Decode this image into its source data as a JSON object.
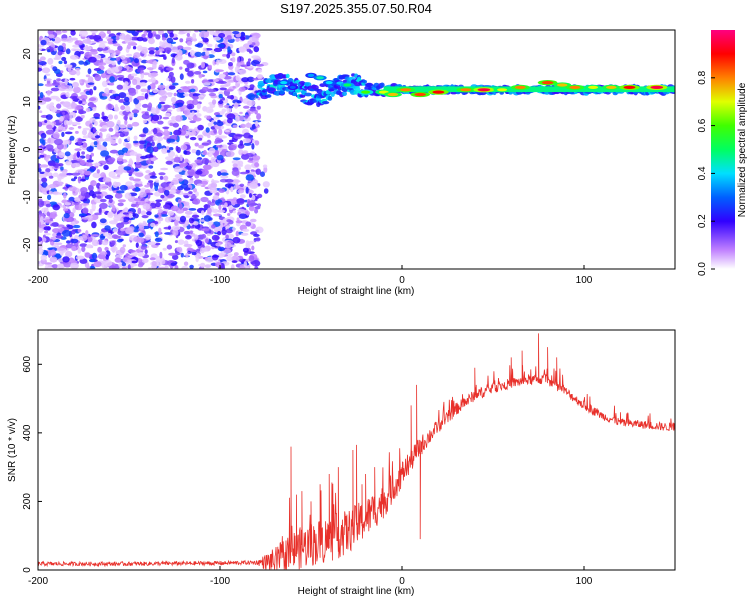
{
  "title": "S197.2025.355.07.50.R04",
  "colors": {
    "signal": "#e8302a",
    "frame": "#000000"
  },
  "chart_data": [
    {
      "type": "heatmap",
      "xlabel": "Height of straight line (km)",
      "ylabel": "Frequency (Hz)",
      "xlim": [
        -200,
        150
      ],
      "ylim": [
        -25,
        25
      ],
      "xticks": [
        -200,
        -100,
        0,
        100
      ],
      "yticks": [
        -20,
        -10,
        0,
        10,
        20
      ],
      "noise_region": [
        -200,
        -78
      ],
      "signal_track": {
        "x_start": -78,
        "x_end": 150,
        "frequency": 12.5,
        "blobs": [
          {
            "x": -72,
            "f": 12.5,
            "v": 0.25
          },
          {
            "x": -65,
            "f": 14.0,
            "v": 0.4
          },
          {
            "x": -60,
            "f": 13.0,
            "v": 0.3
          },
          {
            "x": -50,
            "f": 15.5,
            "v": 0.35
          },
          {
            "x": -45,
            "f": 15.0,
            "v": 0.45
          },
          {
            "x": -40,
            "f": 14.0,
            "v": 0.4
          },
          {
            "x": -30,
            "f": 13.5,
            "v": 0.5
          },
          {
            "x": -20,
            "f": 12.0,
            "v": 0.6
          },
          {
            "x": -10,
            "f": 12.0,
            "v": 0.7
          },
          {
            "x": -5,
            "f": 11.5,
            "v": 0.75
          },
          {
            "x": 2,
            "f": 12.5,
            "v": 0.8
          },
          {
            "x": 10,
            "f": 11.5,
            "v": 0.85
          },
          {
            "x": 20,
            "f": 12.0,
            "v": 0.9
          },
          {
            "x": 35,
            "f": 12.5,
            "v": 0.8
          },
          {
            "x": 45,
            "f": 12.5,
            "v": 0.95
          },
          {
            "x": 55,
            "f": 12.5,
            "v": 0.7
          },
          {
            "x": 65,
            "f": 13.0,
            "v": 0.8
          },
          {
            "x": 80,
            "f": 14.0,
            "v": 0.85
          },
          {
            "x": 88,
            "f": 13.5,
            "v": 0.75
          },
          {
            "x": 95,
            "f": 13.0,
            "v": 0.8
          },
          {
            "x": 105,
            "f": 13.0,
            "v": 0.7
          },
          {
            "x": 115,
            "f": 13.0,
            "v": 0.75
          },
          {
            "x": 125,
            "f": 13.0,
            "v": 0.9
          },
          {
            "x": 140,
            "f": 13.0,
            "v": 0.95
          }
        ]
      },
      "colorbar": {
        "label": "Normalized spectral amplitude",
        "range": [
          0.0,
          1.0
        ],
        "ticks": [
          0.0,
          0.2,
          0.4,
          0.6,
          0.8
        ],
        "tick_labels": [
          "0.0",
          "0.2",
          "0.4",
          "0.6",
          "0.8"
        ]
      }
    },
    {
      "type": "line",
      "xlabel": "Height of straight line (km)",
      "ylabel": "SNR (10 * v/v)",
      "xlim": [
        -200,
        150
      ],
      "ylim": [
        0,
        700
      ],
      "xticks": [
        -200,
        -100,
        0,
        100
      ],
      "yticks": [
        0,
        200,
        400,
        600
      ],
      "series": [
        {
          "name": "SNR",
          "envelope": {
            "x": [
              -200,
              -150,
              -100,
              -80,
              -70,
              -60,
              -50,
              -40,
              -30,
              -20,
              -10,
              0,
              10,
              20,
              30,
              40,
              50,
              60,
              70,
              80,
              90,
              100,
              110,
              120,
              130,
              140,
              150
            ],
            "y": [
              18,
              18,
              20,
              22,
              25,
              55,
              75,
              90,
              110,
              150,
              200,
              280,
              360,
              420,
              470,
              510,
              530,
              545,
              555,
              555,
              520,
              480,
              450,
              430,
              425,
              420,
              415
            ]
          },
          "noise_amplitude": {
            "x": [
              -200,
              -80,
              -70,
              -60,
              -40,
              -20,
              0,
              20,
              50,
              80,
              110,
              150
            ],
            "y": [
              6,
              6,
              40,
              60,
              70,
              60,
              40,
              20,
              15,
              15,
              12,
              12
            ]
          },
          "spikes": [
            {
              "x": -61,
              "y": 360
            },
            {
              "x": -58,
              "y": 220
            },
            {
              "x": -55,
              "y": 230
            },
            {
              "x": -50,
              "y": 200
            },
            {
              "x": -45,
              "y": 250
            },
            {
              "x": -40,
              "y": 280
            },
            {
              "x": -35,
              "y": 300
            },
            {
              "x": -27,
              "y": 350
            },
            {
              "x": -25,
              "y": 365
            },
            {
              "x": -22,
              "y": 250
            },
            {
              "x": -20,
              "y": 280
            },
            {
              "x": -15,
              "y": 300
            },
            {
              "x": -12,
              "y": 200
            },
            {
              "x": 0,
              "y": 300
            },
            {
              "x": 5,
              "y": 480
            },
            {
              "x": 8,
              "y": 540
            },
            {
              "x": 10,
              "y": 90
            },
            {
              "x": 40,
              "y": 590
            },
            {
              "x": 60,
              "y": 620
            },
            {
              "x": 66,
              "y": 640
            },
            {
              "x": 75,
              "y": 690
            },
            {
              "x": 80,
              "y": 650
            },
            {
              "x": 85,
              "y": 620
            },
            {
              "x": 120,
              "y": 460
            }
          ]
        }
      ]
    }
  ]
}
